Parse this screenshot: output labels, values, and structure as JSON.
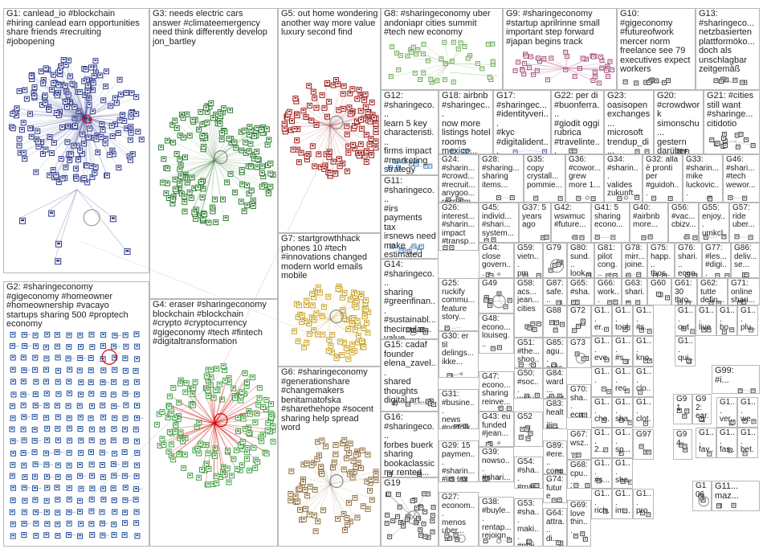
{
  "title": "",
  "groups": [
    {
      "id": "G1",
      "label": "G1: canlead_io #blockchain\n#hiring canlead earn opportunities\nshare friends #recruiting\n#jobopening",
      "color": "#2f3a8a"
    },
    {
      "id": "G2",
      "label": "G2: #sharingeconomy\n#gigeconomy #homeowner\n#homeownership #vacayo\nstartups sharing 500 #proptech\neconomy",
      "color": "#1f4f9f"
    },
    {
      "id": "G3",
      "label": "G3: needs electric cars\nanswer #climateemergency\nneed think differently develop\njon_bartley",
      "color": "#2e7d32"
    },
    {
      "id": "G4",
      "label": "G4: eraser #sharingeconomy\nblockchain #blockchain\n#crypto #cryptocurrency\n#gigeconomy #tech #fintech\n#digitaltransformation",
      "color": "#43a047"
    },
    {
      "id": "G5",
      "label": "G5: out home wondering\nanother way more value\nluxury second find",
      "color": "#9e1b1b"
    },
    {
      "id": "G6",
      "label": "G6: #sharingeconomy\n#generationshare\n#changemakers\nbenitamatofska\n#sharethehope #socent\nsharing help spread\nword",
      "color": "#8d6e3f"
    },
    {
      "id": "G7",
      "label": "G7: startgrowthhack\nphones 10 #tech\n#innovations changed\nmodern world emails\nmobile",
      "color": "#c9a227"
    },
    {
      "id": "G8",
      "label": "G8: #sharingeconomy uber\nandoniapr cities summit\n#tech new economy",
      "color": "#6aa84f"
    },
    {
      "id": "G9",
      "label": "G9: #sharingeconomy\n#startup aprilrinne small\nimportant step forward\n#japan begins track",
      "color": "#a64d79"
    },
    {
      "id": "G10",
      "label": "G10:\n#gigeconomy\n#futureofwork\nmercer norm\nfreelance see 79\nexecutives expect\nworkers",
      "color": "#444444"
    },
    {
      "id": "G13",
      "label": "G13:\n#sharingeco...\nnetzbasierten\nplattformöko...\ndoch als\nunschlagbar\nzeitgemäß",
      "color": "#444444"
    },
    {
      "id": "G12",
      "label": "G12:\n#sharingeco...\nlearn 5 key\ncharacteristi...\nfirms impact\n#marketing\nstrategy",
      "color": "#3d85c6"
    },
    {
      "id": "G18",
      "label": "G18: airbnb\n#sharingec...\nnow more\nlistings hotel\nrooms\nmexico...",
      "color": "#3d85c6"
    },
    {
      "id": "G17",
      "label": "G17:\n#sharingec...\n#identityveri...\n#kyc\n#digitalident...\npymnts...",
      "color": "#674ea7"
    },
    {
      "id": "G22",
      "label": "G22: per di\n#buonferra...\n#giodit oggi\nrubrica\n#travelinte...\nplaya...",
      "color": "#444444"
    },
    {
      "id": "G23",
      "label": "G23:\noasisopen\nexchanges...\nmicrosoft\ntrendup_di...\ncastle...",
      "color": "#444444"
    },
    {
      "id": "G20",
      "label": "G20:\n#crowdwork\nsimonschu...\ngestern\ndarüber\ngesproche...",
      "color": "#444444"
    },
    {
      "id": "G21",
      "label": "G21: #cities\nstill want\n#sharinge...\ncitidotio",
      "color": "#444444"
    },
    {
      "id": "G11",
      "label": "G11:\n#sharingeco...\n#irs\npayments tax\nirsnews need\nmake\nestimated",
      "color": "#3d85c6"
    },
    {
      "id": "G24",
      "label": "G24:\n#sharin...\n#crowd...\n#recruit...\nanygoo...\nrecruitm...",
      "color": "#444444"
    },
    {
      "id": "G28",
      "label": "G28:\n#sharing...\nsharing\nitems...",
      "color": "#444444"
    },
    {
      "id": "G35",
      "label": "G35:\ncopy\ncrystall...\npommie...",
      "color": "#444444"
    },
    {
      "id": "G36",
      "label": "G36:\n#cowor...\ngrew\nmore 1...",
      "color": "#444444"
    },
    {
      "id": "G34",
      "label": "G34:\n#sharin...\nvalides\nzukunft...",
      "color": "#444444"
    },
    {
      "id": "G32",
      "label": "G32: alla\nè pronti\nper\n#guidoh...",
      "color": "#444444"
    },
    {
      "id": "G33",
      "label": "G33:\n#sharin...\nmike\nluckovic...",
      "color": "#444444"
    },
    {
      "id": "G46",
      "label": "G46:\n#shari...\n#tech\nwewor...",
      "color": "#444444"
    },
    {
      "id": "G14",
      "label": "G14:\n#sharingeco...\nsharing\n#greenfinan...\n#sustainabl...\nthecircular...\nvalue...",
      "color": "#444444"
    },
    {
      "id": "G26",
      "label": "G26:\ninterest...\n#sharin...\nimpact\n#transp...",
      "color": "#444444"
    },
    {
      "id": "G45",
      "label": "G45:\nindivid...\n#shari...\nsystem...",
      "color": "#444444"
    },
    {
      "id": "G37",
      "label": "G37: 5\nyears\nago",
      "color": "#444444"
    },
    {
      "id": "G42",
      "label": "G42:\nwswmuc\n#future...",
      "color": "#444444"
    },
    {
      "id": "G41",
      "label": "G41: 5\nsharing\necono...",
      "color": "#444444"
    },
    {
      "id": "G40",
      "label": "G40:\n#airbnb\nmore...",
      "color": "#444444"
    },
    {
      "id": "G56",
      "label": "G56:\n#vac...\ncbizv...",
      "color": "#444444"
    },
    {
      "id": "G55",
      "label": "G55:\nenjoy...\numkcl...",
      "color": "#444444"
    },
    {
      "id": "G57",
      "label": "G57:\nride\nuber...",
      "color": "#444444"
    },
    {
      "id": "G44",
      "label": "G44:\nclose\ngovern...",
      "color": "#444444"
    },
    {
      "id": "G59",
      "label": "G59:\nvietn...\npm\nokay...",
      "color": "#444444"
    },
    {
      "id": "G79",
      "label": "G79",
      "color": "#444444"
    },
    {
      "id": "G80",
      "label": "G80:\nsund...\nlook...",
      "color": "#444444"
    },
    {
      "id": "G81",
      "label": "G81:\npilot\ncong...",
      "color": "#444444"
    },
    {
      "id": "G78",
      "label": "G78:\nmirr...\njoine...",
      "color": "#444444"
    },
    {
      "id": "G75",
      "label": "G75:\nhapp...\nthos...",
      "color": "#444444"
    },
    {
      "id": "G76",
      "label": "G76:\nshari...\necon...",
      "color": "#444444"
    },
    {
      "id": "G77",
      "label": "G77:\n#les...\n#digi...",
      "color": "#444444"
    },
    {
      "id": "G86",
      "label": "G86:\ndeliv...\nse...",
      "color": "#444444"
    },
    {
      "id": "G25",
      "label": "G25:\nruckify\ncommu...\nfeature\nstory...",
      "color": "#444444"
    },
    {
      "id": "G49",
      "label": "G49",
      "color": "#444444"
    },
    {
      "id": "G58",
      "label": "G58:\nacs...\njean...\ncities",
      "color": "#444444"
    },
    {
      "id": "G87",
      "label": "G87:\nsafe...",
      "color": "#444444"
    },
    {
      "id": "G65",
      "label": "G65:\n#sha...\nboo...",
      "color": "#444444"
    },
    {
      "id": "G66",
      "label": "G66:\nwork...\nthem...",
      "color": "#444444"
    },
    {
      "id": "G63",
      "label": "G63:\nshari...\nplent...",
      "color": "#444444"
    },
    {
      "id": "G60",
      "label": "G60",
      "color": "#444444"
    },
    {
      "id": "G61",
      "label": "G61:\n30\nthro...",
      "color": "#444444"
    },
    {
      "id": "G62",
      "label": "G62:\ntutte\ndefin...",
      "color": "#444444"
    },
    {
      "id": "G71",
      "label": "G71:\nonline\nshari...",
      "color": "#444444"
    },
    {
      "id": "G30",
      "label": "G30: er\ntil\ndelings...\nikke...",
      "color": "#444444"
    },
    {
      "id": "G48",
      "label": "G48:\necono...\nlouiseg...",
      "color": "#444444"
    },
    {
      "id": "G88",
      "label": "G88",
      "color": "#444444"
    },
    {
      "id": "G72",
      "label": "G72",
      "color": "#444444"
    },
    {
      "id": "G15",
      "label": "G15: cadaf\nfounder\nelena_zavel...\nshared\nthoughts\ndigital art...",
      "color": "#444444"
    },
    {
      "id": "G51",
      "label": "G51:\n#the...\nshoo...\nday...",
      "color": "#444444"
    },
    {
      "id": "G85",
      "label": "G85:\nagu...\nalwa...",
      "color": "#444444"
    },
    {
      "id": "G73",
      "label": "G73",
      "color": "#444444"
    },
    {
      "id": "G47",
      "label": "G47:\necono...\nsharing\nreinve...",
      "color": "#444444"
    },
    {
      "id": "G50",
      "label": "G50:\n#soc...\nwetu...\nprovi...",
      "color": "#444444"
    },
    {
      "id": "G84",
      "label": "G84:\nward...\nmeet...",
      "color": "#444444"
    },
    {
      "id": "G70",
      "label": "G70:\nsha...\neco...",
      "color": "#444444"
    },
    {
      "id": "G31",
      "label": "G31:\n#busine...\nnews\n#norfolk...",
      "color": "#444444"
    },
    {
      "id": "G83",
      "label": "G83:\nhealt...\nfloo...",
      "color": "#444444"
    },
    {
      "id": "G16",
      "label": "G16:\n#sharingeco...\nforbes buerk\nsharing\nbookaclassic\nmr rented...",
      "color": "#444444"
    },
    {
      "id": "G43",
      "label": "G43: eu\nfunded\n#jean...",
      "color": "#444444"
    },
    {
      "id": "G52",
      "label": "G52",
      "color": "#444444"
    },
    {
      "id": "G67",
      "label": "G67:\nwsz...",
      "color": "#444444"
    },
    {
      "id": "G97",
      "label": "G97",
      "color": "#444444"
    },
    {
      "id": "G94",
      "label": "G94",
      "color": "#444444"
    },
    {
      "id": "G29",
      "label": "G29: 15\npaymen...\n#sharin...\n#irs tax",
      "color": "#444444"
    },
    {
      "id": "G39",
      "label": "G39:\nnowso...\n#shari...",
      "color": "#444444"
    },
    {
      "id": "G54",
      "label": "G54:\n#sha...\n#mai...",
      "color": "#444444"
    },
    {
      "id": "G89",
      "label": "G89:\n#ere...\ncong...",
      "color": "#444444"
    },
    {
      "id": "G68",
      "label": "G68:\ncpu...\nlaun...",
      "color": "#444444"
    },
    {
      "id": "G74",
      "label": "G74:\nfuture",
      "color": "#444444"
    },
    {
      "id": "G19",
      "label": "G19",
      "color": "#444444"
    },
    {
      "id": "G27",
      "label": "G27:\neconom...\nmenos\nuber...",
      "color": "#444444"
    },
    {
      "id": "G38",
      "label": "G38:\n#buyle...\nrentap...\nrejoign...",
      "color": "#444444"
    },
    {
      "id": "G53",
      "label": "G53:\n#sha...\nmaki...\n#mai...",
      "color": "#444444"
    },
    {
      "id": "G64",
      "label": "G64:\nattra...\ndi...",
      "color": "#444444"
    },
    {
      "id": "G69",
      "label": "G69:\nlove\nthin...",
      "color": "#444444"
    },
    {
      "id": "G99",
      "label": "G99:\n#i...",
      "color": "#444444"
    },
    {
      "id": "G91",
      "label": "G91",
      "color": "#444444"
    },
    {
      "id": "G92",
      "label": "G92:\near...",
      "color": "#444444"
    },
    {
      "id": "G106",
      "label": "G106",
      "color": "#444444"
    },
    {
      "id": "G11x",
      "label": "G11...\nmaz...",
      "color": "#444444"
    }
  ],
  "small_grid_cells": [
    {
      "label": "G1...\ner...",
      "color": "#444"
    },
    {
      "label": "G1...\ntool",
      "color": "#444"
    },
    {
      "label": "G1...\n#s...",
      "color": "#444"
    },
    {
      "label": "G1...\nout",
      "color": "#444"
    },
    {
      "label": "G1...\nlive",
      "color": "#444"
    },
    {
      "label": "G1...\nbo...",
      "color": "#444"
    },
    {
      "label": "G1...\nplu...",
      "color": "#444"
    },
    {
      "label": "G1...\neve...",
      "color": "#444"
    },
    {
      "label": "G1...\n#s...",
      "color": "#444"
    },
    {
      "label": "G1...\nkno...",
      "color": "#444"
    },
    {
      "label": "G1...\nqui...",
      "color": "#444"
    },
    {
      "label": "G1...",
      "color": "#444"
    },
    {
      "label": "G1...\nrec...",
      "color": "#444"
    },
    {
      "label": "G1...\nclo...",
      "color": "#444"
    },
    {
      "label": "G1...\ncho...",
      "color": "#444"
    },
    {
      "label": "G1...\nsha...",
      "color": "#444"
    },
    {
      "label": "G1...\nclot...",
      "color": "#444"
    },
    {
      "label": "G1...\nver...",
      "color": "#444"
    },
    {
      "label": "G1...\nwe...",
      "color": "#444"
    },
    {
      "label": "G1...\n2...",
      "color": "#444"
    },
    {
      "label": "G1...\nsp...",
      "color": "#444"
    },
    {
      "label": "G1...\nfav...",
      "color": "#444"
    },
    {
      "label": "G1...\nfas...",
      "color": "#444"
    },
    {
      "label": "G1...\nbet...",
      "color": "#444"
    },
    {
      "label": "G1...\n#s...",
      "color": "#444"
    },
    {
      "label": "G1...\nsha...",
      "color": "#444"
    },
    {
      "label": "G1...\nrich...",
      "color": "#444"
    },
    {
      "label": "G1...\nim...",
      "color": "#444"
    },
    {
      "label": "G1...\npro...",
      "color": "#444"
    },
    {
      "label": "G1...\nfou...",
      "color": "#444"
    },
    {
      "label": "G1...\nteil...",
      "color": "#444"
    },
    {
      "label": "G1...\nec...",
      "color": "#444"
    },
    {
      "label": "G1...\nblo...",
      "color": "#444"
    },
    {
      "label": "G...\npla...\nplu...",
      "color": "#444"
    },
    {
      "label": "G...\ntut...\nbuybe...",
      "color": "#444"
    }
  ]
}
